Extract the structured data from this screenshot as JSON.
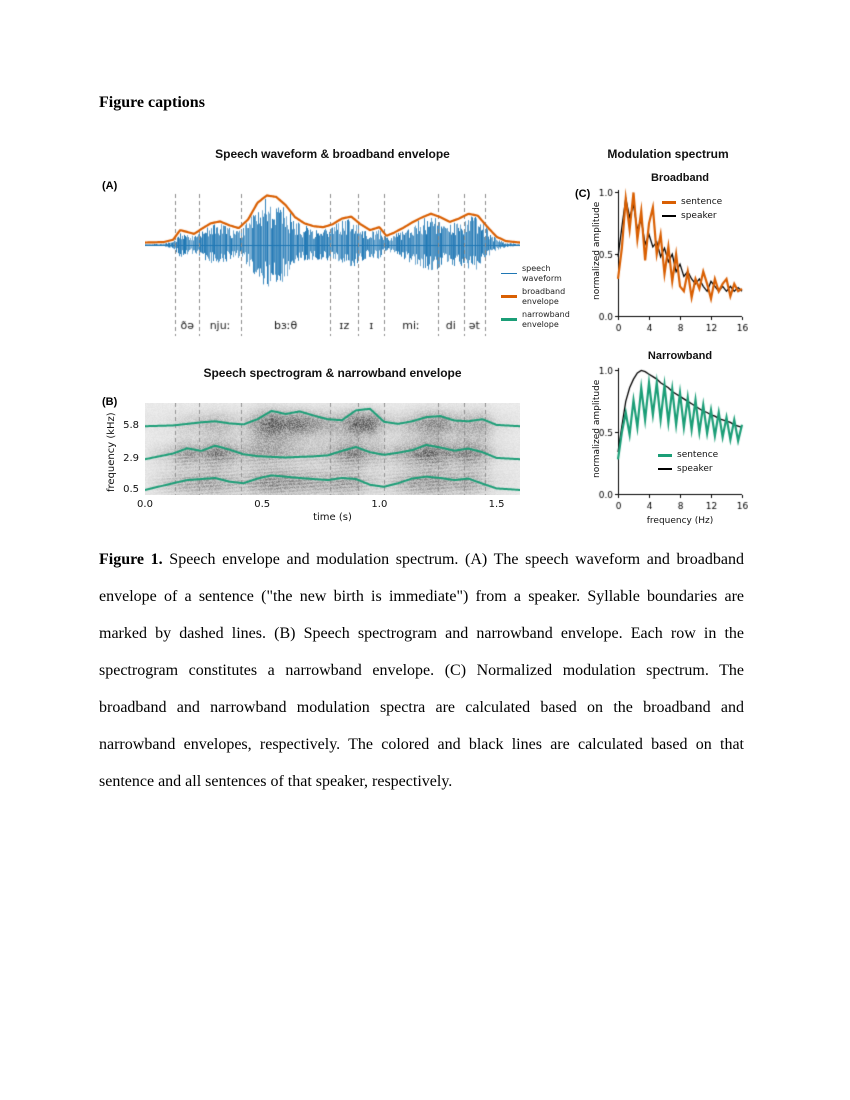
{
  "page": {
    "heading": "Figure captions"
  },
  "figure": {
    "panel_a": {
      "label": "(A)",
      "title": "Speech waveform & broadband envelope",
      "legend": [
        {
          "label": "speech waveform",
          "color": "#1f77b4"
        },
        {
          "label": "broadband envelope",
          "color": "#d95f02"
        },
        {
          "label": "narrowband envelope",
          "color": "#1b9e77"
        }
      ]
    },
    "panel_b": {
      "label": "(B)",
      "title": "Speech spectrogram & narrowband envelope",
      "ylabel": "frequency (kHz)",
      "xlabel": "time (s)"
    },
    "panel_c": {
      "label": "(C)",
      "title": "Modulation spectrum",
      "ylabel": "normalized amplitude",
      "xlabel": "frequency (Hz)",
      "subplots": [
        {
          "title": "Broadband",
          "legend": [
            {
              "label": "sentence",
              "color": "#d95f02"
            },
            {
              "label": "speaker",
              "color": "#000000"
            }
          ]
        },
        {
          "title": "Narrowband",
          "legend": [
            {
              "label": "sentence",
              "color": "#1b9e77"
            },
            {
              "label": "speaker",
              "color": "#000000"
            }
          ]
        }
      ]
    }
  },
  "caption": {
    "label": "Figure 1.",
    "text": " Speech envelope and modulation spectrum. (A) The speech waveform and broadband envelope of a sentence (\"the new birth is immediate\") from a speaker. Syllable boundaries are marked by dashed lines. (B) Speech spectrogram and narrowband envelope. Each row in the spectrogram constitutes a narrowband envelope. (C) Normalized modulation spectrum. The broadband and narrowband modulation spectra are calculated based on the broadband and narrowband envelopes, respectively. The colored and black lines are calculated based on that sentence and all sentences of that speaker, respectively."
  },
  "chart_data": [
    {
      "id": "waveform",
      "type": "line",
      "title": "Speech waveform & broadband envelope",
      "x_range": [
        0,
        1.6
      ],
      "legend": [
        "speech waveform",
        "broadband envelope",
        "narrowband envelope"
      ],
      "syllable_boundaries_s": [
        0.13,
        0.23,
        0.41,
        0.79,
        0.91,
        1.02,
        1.25,
        1.36,
        1.45
      ],
      "phonemes": [
        "ðə",
        "njuː",
        "bɜːθ",
        "ɪz",
        "ɪ",
        "miː",
        "di",
        "ət"
      ],
      "broadband_envelope": {
        "t": [
          0.0,
          0.08,
          0.12,
          0.15,
          0.18,
          0.21,
          0.24,
          0.28,
          0.32,
          0.36,
          0.4,
          0.44,
          0.48,
          0.52,
          0.56,
          0.6,
          0.64,
          0.68,
          0.72,
          0.76,
          0.8,
          0.84,
          0.88,
          0.92,
          0.96,
          1.0,
          1.03,
          1.06,
          1.1,
          1.14,
          1.18,
          1.22,
          1.26,
          1.3,
          1.34,
          1.38,
          1.42,
          1.46,
          1.5,
          1.54,
          1.6
        ],
        "a": [
          0.02,
          0.03,
          0.08,
          0.28,
          0.24,
          0.2,
          0.3,
          0.42,
          0.46,
          0.38,
          0.32,
          0.5,
          0.85,
          1.0,
          0.97,
          0.8,
          0.55,
          0.42,
          0.36,
          0.34,
          0.4,
          0.52,
          0.56,
          0.4,
          0.28,
          0.34,
          0.16,
          0.22,
          0.32,
          0.44,
          0.54,
          0.62,
          0.55,
          0.45,
          0.52,
          0.62,
          0.58,
          0.35,
          0.14,
          0.05,
          0.02
        ]
      },
      "colors": {
        "waveform": "#1f77b4",
        "envelope": "#d95f02",
        "boundary": "#8c8c8c"
      }
    },
    {
      "id": "spectrogram",
      "type": "heatmap",
      "title": "Speech spectrogram & narrowband envelope",
      "xlabel": "time (s)",
      "ylabel": "frequency (kHz)",
      "x_range": [
        0,
        1.6
      ],
      "x_ticks": {
        "values": [
          0,
          0.5,
          1.0,
          1.5
        ],
        "labels": [
          "0.0",
          "0.5",
          "1.0",
          "1.5"
        ]
      },
      "y_ticks": {
        "values": [
          5.8,
          2.9,
          0.5
        ],
        "labels": [
          "5.8",
          "2.9",
          "0.5"
        ]
      },
      "color": "#1b9e77",
      "narrowband_envelopes": [
        {
          "freq_khz": 5.8,
          "t": [
            0,
            0.12,
            0.18,
            0.24,
            0.3,
            0.36,
            0.42,
            0.48,
            0.54,
            0.6,
            0.66,
            0.72,
            0.78,
            0.84,
            0.9,
            0.96,
            1.02,
            1.08,
            1.14,
            1.2,
            1.26,
            1.32,
            1.38,
            1.44,
            1.5,
            1.6
          ],
          "a": [
            0.03,
            0.06,
            0.12,
            0.18,
            0.22,
            0.14,
            0.1,
            0.3,
            0.62,
            0.5,
            0.6,
            0.44,
            0.3,
            0.26,
            0.64,
            0.7,
            0.2,
            0.12,
            0.22,
            0.38,
            0.42,
            0.25,
            0.22,
            0.3,
            0.08,
            0.03
          ]
        },
        {
          "freq_khz": 2.9,
          "t": [
            0,
            0.12,
            0.18,
            0.24,
            0.3,
            0.36,
            0.42,
            0.48,
            0.54,
            0.6,
            0.66,
            0.72,
            0.78,
            0.84,
            0.9,
            0.96,
            1.02,
            1.08,
            1.14,
            1.2,
            1.26,
            1.32,
            1.38,
            1.44,
            1.5,
            1.6
          ],
          "a": [
            0.03,
            0.25,
            0.45,
            0.35,
            0.55,
            0.4,
            0.22,
            0.15,
            0.12,
            0.1,
            0.12,
            0.14,
            0.18,
            0.35,
            0.5,
            0.3,
            0.2,
            0.28,
            0.38,
            0.58,
            0.48,
            0.36,
            0.44,
            0.3,
            0.08,
            0.03
          ]
        },
        {
          "freq_khz": 0.5,
          "t": [
            0,
            0.12,
            0.18,
            0.24,
            0.3,
            0.36,
            0.42,
            0.48,
            0.54,
            0.6,
            0.66,
            0.72,
            0.78,
            0.84,
            0.9,
            0.96,
            1.02,
            1.08,
            1.14,
            1.2,
            1.26,
            1.32,
            1.38,
            1.44,
            1.5,
            1.6
          ],
          "a": [
            0.04,
            0.3,
            0.42,
            0.46,
            0.5,
            0.36,
            0.3,
            0.48,
            0.6,
            0.55,
            0.5,
            0.46,
            0.42,
            0.5,
            0.46,
            0.24,
            0.16,
            0.3,
            0.48,
            0.55,
            0.5,
            0.42,
            0.48,
            0.28,
            0.1,
            0.04
          ]
        }
      ]
    },
    {
      "id": "modulation_broadband",
      "type": "line",
      "title": "Broadband",
      "xlabel": "frequency (Hz)",
      "ylabel": "normalized amplitude",
      "xlim": [
        0,
        16
      ],
      "ylim": [
        0,
        1
      ],
      "x_ticks": {
        "values": [
          0,
          4,
          8,
          12,
          16
        ],
        "labels": [
          "0",
          "4",
          "8",
          "12",
          "16"
        ]
      },
      "y_ticks": {
        "values": [
          0,
          0.5,
          1.0
        ],
        "labels": [
          "0.0",
          "0.5",
          "1.0"
        ]
      },
      "x": [
        0,
        0.5,
        1,
        1.5,
        2,
        2.5,
        3,
        3.5,
        4,
        4.5,
        5,
        5.5,
        6,
        6.5,
        7,
        7.5,
        8,
        8.5,
        9,
        9.5,
        10,
        10.5,
        11,
        11.5,
        12,
        12.5,
        13,
        13.5,
        14,
        14.5,
        15,
        15.5,
        16
      ],
      "series": [
        {
          "name": "sentence",
          "color": "#d95f02",
          "values": [
            0.3,
            0.55,
            0.95,
            0.7,
            1.0,
            0.62,
            0.85,
            0.45,
            0.75,
            0.88,
            0.5,
            0.66,
            0.34,
            0.56,
            0.28,
            0.5,
            0.24,
            0.2,
            0.36,
            0.15,
            0.3,
            0.22,
            0.36,
            0.26,
            0.14,
            0.3,
            0.2,
            0.26,
            0.3,
            0.16,
            0.26,
            0.2,
            0.22
          ]
        },
        {
          "name": "speaker",
          "color": "#000000",
          "values": [
            0.48,
            0.72,
            0.95,
            0.8,
            0.9,
            0.7,
            0.78,
            0.58,
            0.66,
            0.56,
            0.6,
            0.48,
            0.55,
            0.44,
            0.5,
            0.36,
            0.42,
            0.32,
            0.36,
            0.3,
            0.26,
            0.3,
            0.24,
            0.2,
            0.28,
            0.24,
            0.2,
            0.24,
            0.2,
            0.24,
            0.2,
            0.23,
            0.2
          ]
        }
      ]
    },
    {
      "id": "modulation_narrowband",
      "type": "line",
      "title": "Narrowband",
      "xlabel": "frequency (Hz)",
      "ylabel": "normalized amplitude",
      "xlim": [
        0,
        16
      ],
      "ylim": [
        0,
        1
      ],
      "x_ticks": {
        "values": [
          0,
          4,
          8,
          12,
          16
        ],
        "labels": [
          "0",
          "4",
          "8",
          "12",
          "16"
        ]
      },
      "y_ticks": {
        "values": [
          0,
          0.5,
          1.0
        ],
        "labels": [
          "0.0",
          "0.5",
          "1.0"
        ]
      },
      "x": [
        0,
        0.5,
        1,
        1.5,
        2,
        2.5,
        3,
        3.5,
        4,
        4.5,
        5,
        5.5,
        6,
        6.5,
        7,
        7.5,
        8,
        8.5,
        9,
        9.5,
        10,
        10.5,
        11,
        11.5,
        12,
        12.5,
        13,
        13.5,
        14,
        14.5,
        15,
        15.5,
        16
      ],
      "series": [
        {
          "name": "sentence",
          "color": "#1b9e77",
          "values": [
            0.28,
            0.5,
            0.66,
            0.48,
            0.76,
            0.54,
            0.86,
            0.6,
            0.9,
            0.64,
            0.9,
            0.6,
            0.88,
            0.58,
            0.85,
            0.56,
            0.82,
            0.54,
            0.78,
            0.52,
            0.76,
            0.5,
            0.72,
            0.49,
            0.68,
            0.47,
            0.66,
            0.46,
            0.62,
            0.44,
            0.6,
            0.43,
            0.56
          ]
        },
        {
          "name": "speaker",
          "color": "#000000",
          "values": [
            0.34,
            0.55,
            0.75,
            0.86,
            0.93,
            0.98,
            1.0,
            0.99,
            0.97,
            0.95,
            0.93,
            0.9,
            0.88,
            0.86,
            0.83,
            0.81,
            0.79,
            0.77,
            0.75,
            0.73,
            0.71,
            0.69,
            0.67,
            0.66,
            0.64,
            0.63,
            0.61,
            0.6,
            0.59,
            0.58,
            0.56,
            0.55,
            0.54
          ]
        }
      ]
    }
  ]
}
